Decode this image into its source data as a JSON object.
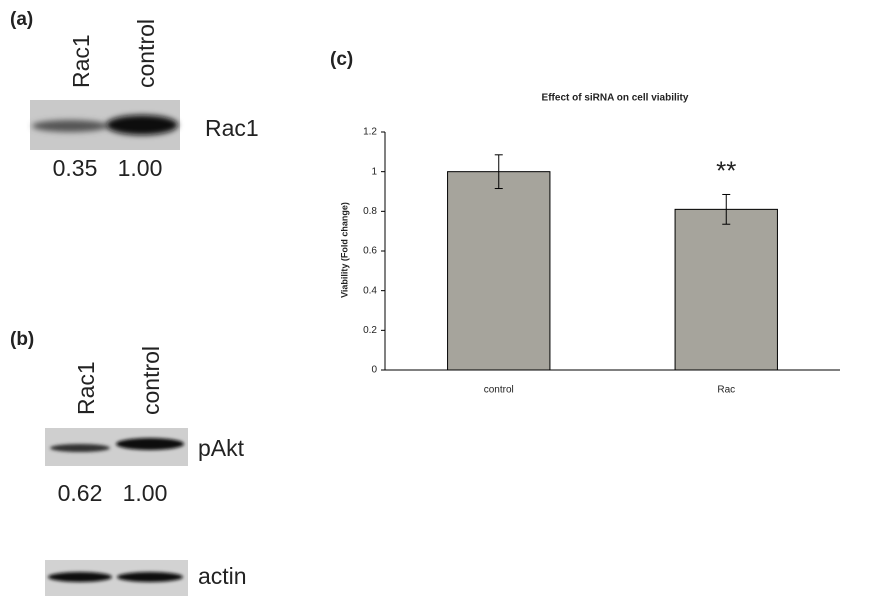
{
  "panel_a": {
    "label": "(a)",
    "lanes": [
      "Rac1",
      "control"
    ],
    "blot_label": "Rac1",
    "quantities": [
      "0.35",
      "1.00"
    ]
  },
  "panel_b": {
    "label": "(b)",
    "lanes": [
      "Rac1",
      "control"
    ],
    "blot_label": "pAkt",
    "quantities": [
      "0.62",
      "1.00"
    ],
    "loading_label": "actin"
  },
  "chart_data": {
    "type": "bar",
    "panel_label": "(c)",
    "title": "Effect of siRNA on cell viability",
    "y_label": "Viability (Fold change)",
    "categories": [
      "control",
      "Rac"
    ],
    "values": [
      1.0,
      0.81
    ],
    "errors": [
      0.085,
      0.075
    ],
    "color": "#a6a49c",
    "ylim": [
      0,
      1.2
    ],
    "yticks": [
      0,
      0.2,
      0.4,
      0.6,
      0.8,
      1,
      1.2
    ],
    "annotations": [
      "**"
    ]
  }
}
